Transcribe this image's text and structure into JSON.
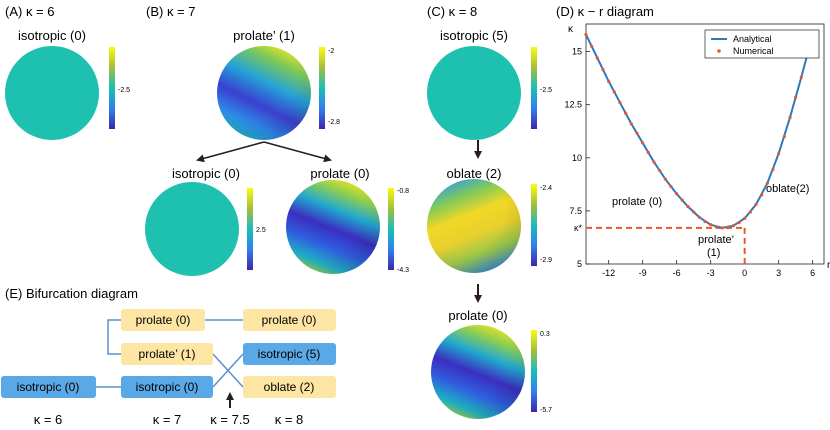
{
  "panels": {
    "A": {
      "title": "(A) κ = 6"
    },
    "B": {
      "title": "(B) κ = 7"
    },
    "C": {
      "title": "(C) κ = 8"
    },
    "D": {
      "title": "(D) κ − r diagram"
    },
    "E": {
      "title": "(E) Bifurcation diagram"
    }
  },
  "spheres": {
    "a_iso": {
      "label": "isotropic (0)",
      "ticks": [
        "-2.5"
      ]
    },
    "b_prolate_prime": {
      "label": "prolate’ (1)",
      "ticks": [
        "-2",
        "-2.8"
      ]
    },
    "b_iso": {
      "label": "isotropic (0)",
      "ticks": [
        "2.5"
      ]
    },
    "b_prolate": {
      "label": "prolate (0)",
      "ticks": [
        "-0.8",
        "-4.3"
      ]
    },
    "c_iso": {
      "label": "isotropic (5)",
      "ticks": [
        "-2.5"
      ]
    },
    "c_oblate": {
      "label": "oblate (2)",
      "ticks": [
        "-2.4",
        "-2.9"
      ]
    },
    "c_prolate": {
      "label": "prolate (0)",
      "ticks": [
        "0.3",
        "-5.7"
      ]
    }
  },
  "bifurcation": {
    "boxes": {
      "iso6": "isotropic (0)",
      "iso7": "isotropic (0)",
      "prolp7": "prolate’ (1)",
      "prol7": "prolate (0)",
      "prol8": "prolate (0)",
      "iso8": "isotropic (5)",
      "obl8": "oblate (2)"
    },
    "kappa_labels": [
      "κ = 6",
      "κ = 7",
      "κ = 7.5",
      "κ = 8"
    ],
    "colors": {
      "blue_box": "#5aa9e6",
      "yellow_box": "#fde5a3",
      "line": "#5b8fd0"
    }
  },
  "chart_data": {
    "type": "line",
    "title": "(D) κ − r diagram",
    "xlabel": "r",
    "ylabel": "κ",
    "xlim": [
      -14,
      7
    ],
    "ylim": [
      5,
      16.3
    ],
    "xticks": [
      -12,
      -9,
      -6,
      -3,
      0,
      3,
      6
    ],
    "yticks": [
      5,
      7.5,
      10,
      12.5,
      15
    ],
    "kappa_star": 6.7,
    "legend": [
      "Analytical",
      "Numerical"
    ],
    "legend_position": "top-right",
    "annotations": [
      "prolate (0)",
      "prolate’",
      "(1)",
      "oblate(2)",
      "κ*"
    ],
    "series": [
      {
        "name": "Analytical",
        "style": "line",
        "color": "#2b7bba",
        "x": [
          -14,
          -13,
          -12,
          -11,
          -10,
          -9,
          -8,
          -7,
          -6,
          -5,
          -4,
          -3,
          -2,
          -1,
          0,
          1,
          2,
          3,
          4,
          5,
          6
        ],
        "y": [
          15.8,
          14.7,
          13.6,
          12.6,
          11.6,
          10.7,
          9.8,
          9.0,
          8.3,
          7.7,
          7.2,
          6.85,
          6.7,
          6.8,
          7.15,
          7.8,
          8.8,
          10.2,
          11.9,
          13.8,
          15.8
        ]
      },
      {
        "name": "Numerical",
        "style": "dots",
        "color": "#e8582a",
        "x": [
          -14,
          -13.5,
          -13,
          -12.5,
          -12,
          -11.5,
          -11,
          -10.5,
          -10,
          -9.5,
          -9,
          -8.5,
          -8,
          -7.5,
          -7,
          -6.5,
          -6,
          -5.5,
          -5,
          -4.5,
          -4,
          -3.5,
          -3,
          -2.5,
          -2,
          -1.5,
          -1,
          -0.5,
          0,
          0.5,
          1,
          1.5,
          2,
          2.5,
          3,
          3.5,
          4,
          4.5,
          5,
          5.5,
          6
        ],
        "y": [
          15.8,
          15.25,
          14.7,
          14.15,
          13.6,
          13.1,
          12.6,
          12.1,
          11.6,
          11.15,
          10.7,
          10.25,
          9.8,
          9.4,
          9.0,
          8.65,
          8.3,
          8.0,
          7.7,
          7.45,
          7.2,
          7.0,
          6.85,
          6.75,
          6.7,
          6.72,
          6.8,
          6.95,
          7.15,
          7.45,
          7.8,
          8.25,
          8.8,
          9.45,
          10.2,
          11.0,
          11.9,
          12.85,
          13.8,
          14.8,
          15.8
        ]
      }
    ]
  }
}
